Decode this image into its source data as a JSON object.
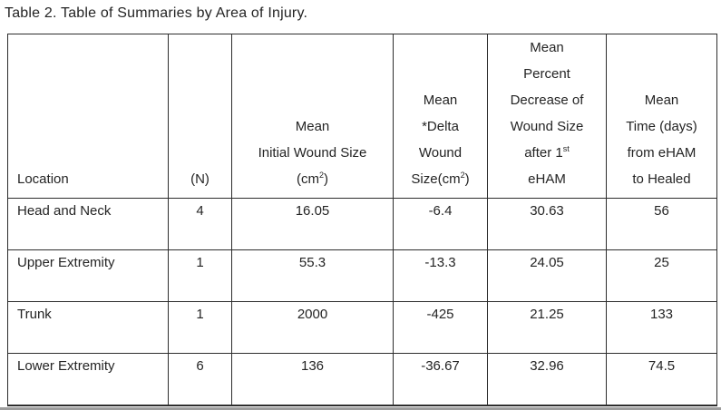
{
  "title": "Table 2. Table of Summaries by Area of Injury.",
  "colors": {
    "background": "#ffffff",
    "text": "#242424",
    "border": "#2d2d2d",
    "bottom_edge": "#9c9c9c"
  },
  "table": {
    "columns": [
      {
        "id": "location",
        "align": "left",
        "header_lines": [
          "Location"
        ]
      },
      {
        "id": "n",
        "align": "center",
        "header_lines": [
          "(N)"
        ]
      },
      {
        "id": "mean-initial-wound-size",
        "align": "center",
        "header_lines": [
          "Mean",
          "Initial Wound Size",
          "(cm^2^)"
        ]
      },
      {
        "id": "mean-delta-wound-size",
        "align": "center",
        "header_lines": [
          "Mean",
          "*Delta",
          "Wound",
          "Size(cm^2^)"
        ]
      },
      {
        "id": "mean-percent-decrease",
        "align": "center",
        "header_lines": [
          "Mean",
          "Percent",
          "Decrease of",
          "Wound Size",
          "after 1^st^",
          "eHAM"
        ]
      },
      {
        "id": "mean-time-days",
        "align": "center",
        "header_lines": [
          "Mean",
          "Time (days)",
          "from eHAM",
          "to Healed"
        ]
      }
    ],
    "rows": [
      {
        "cells": [
          "Head and Neck",
          "4",
          "16.05",
          "-6.4",
          "30.63",
          "56"
        ]
      },
      {
        "cells": [
          "Upper Extremity",
          "1",
          "55.3",
          "-13.3",
          "24.05",
          "25"
        ]
      },
      {
        "cells": [
          "Trunk",
          "1",
          "2000",
          "-425",
          "21.25",
          "133"
        ]
      },
      {
        "cells": [
          "Lower Extremity",
          "6",
          "136",
          "-36.67",
          "32.96",
          "74.5"
        ]
      }
    ]
  }
}
